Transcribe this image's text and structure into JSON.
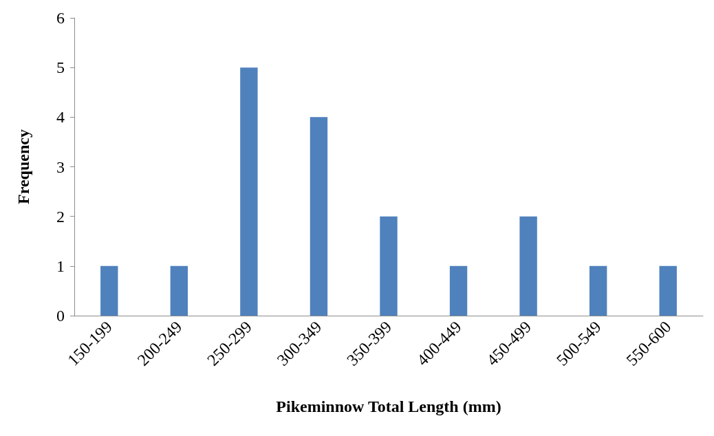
{
  "chart_data": {
    "type": "bar",
    "xlabel": "Pikeminnow Total Length (mm)",
    "ylabel": "Frequency",
    "categories": [
      "150-199",
      "200-249",
      "250-299",
      "300-349",
      "350-399",
      "400-449",
      "450-499",
      "500-549",
      "550-600"
    ],
    "values": [
      1,
      1,
      5,
      4,
      2,
      1,
      2,
      1,
      1
    ],
    "color": "#4f81bd",
    "ylim": [
      0,
      6
    ],
    "yticks": [
      0,
      1,
      2,
      3,
      4,
      5,
      6
    ],
    "grid": false
  }
}
